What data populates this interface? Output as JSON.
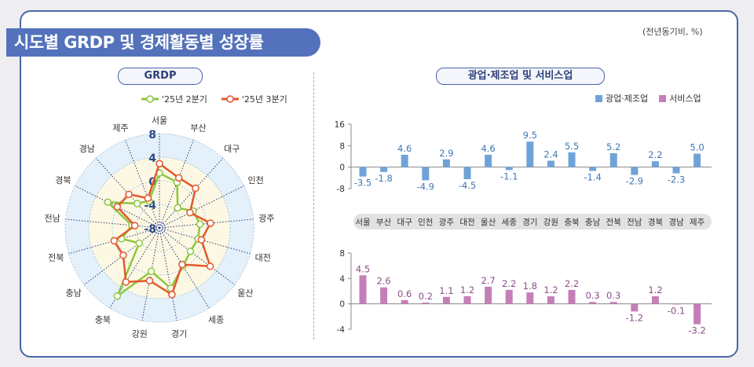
{
  "title": "시도별 GRDP 및 경제활동별 성장률",
  "unit_note": "(전년동기비, %)",
  "colors": {
    "q2": "#8dc63f",
    "q3": "#e2582a",
    "mining": "#6fa3d8",
    "service": "#c47fb8",
    "frame": "#4a66a8"
  },
  "chart_data": [
    {
      "type": "radar",
      "title": "GRDP",
      "categories": [
        "서울",
        "부산",
        "대구",
        "인천",
        "광주",
        "대전",
        "울산",
        "세종",
        "경기",
        "강원",
        "충북",
        "충남",
        "전북",
        "전남",
        "경북",
        "경남",
        "제주"
      ],
      "rlim": [
        -8,
        8
      ],
      "ticks": [
        8,
        4,
        0,
        -4,
        -8
      ],
      "tick_labels": [
        "8",
        "4",
        "0",
        "-4",
        "-8"
      ],
      "series": [
        {
          "name": "'25년 2분기",
          "values": [
            1.3,
            0.3,
            -3.4,
            -1.6,
            -1.1,
            -1.2,
            -1.4,
            -0.4,
            2.4,
            -0.5,
            5.6,
            -3.7,
            -1.3,
            -3.3,
            1.8,
            -2.4,
            -3.1
          ]
        },
        {
          "name": "'25년 3분기",
          "values": [
            2.9,
            1.1,
            1.1,
            -2.2,
            0.7,
            -0.6,
            2.8,
            -0.7,
            3.5,
            1.1,
            2.8,
            -0.3,
            0.0,
            -3.8,
            0.0,
            -0.3,
            -2.6
          ]
        }
      ]
    },
    {
      "type": "bar",
      "title": "광업·제조업 및 서비스업",
      "categories": [
        "서울",
        "부산",
        "대구",
        "인천",
        "광주",
        "대전",
        "울산",
        "세종",
        "경기",
        "강원",
        "충북",
        "충남",
        "전북",
        "전남",
        "경북",
        "경남",
        "제주"
      ],
      "series": [
        {
          "name": "광업·제조업",
          "values": [
            -3.5,
            -1.8,
            4.6,
            -4.9,
            2.9,
            -4.5,
            4.6,
            -1.1,
            9.5,
            2.4,
            5.5,
            -1.4,
            5.2,
            -2.9,
            2.2,
            -2.3,
            5.0
          ],
          "labels": [
            "-3.5",
            "-1.8",
            "4.6",
            "-4.9",
            "2.9",
            "-4.5",
            "4.6",
            "-1.1",
            "9.5",
            "2.4",
            "5.5",
            "-1.4",
            "5.2",
            "-2.9",
            "2.2",
            "-2.3",
            "5.0"
          ],
          "ylim": [
            -8,
            16
          ],
          "ticks": [
            "16",
            "8",
            "0",
            "-8"
          ]
        },
        {
          "name": "서비스업",
          "values": [
            4.5,
            2.6,
            0.6,
            0.2,
            1.1,
            1.2,
            2.7,
            2.2,
            1.8,
            1.2,
            2.2,
            0.3,
            0.3,
            -1.2,
            1.2,
            -0.1,
            -3.2
          ],
          "labels": [
            "4.5",
            "2.6",
            "0.6",
            "0.2",
            "1.1",
            "1.2",
            "2.7",
            "2.2",
            "1.8",
            "1.2",
            "2.2",
            "0.3",
            "0.3",
            "-1.2",
            "1.2",
            "-0.1",
            "-3.2"
          ],
          "ylim": [
            -4,
            8
          ],
          "ticks": [
            "8",
            "4",
            "0",
            "-4"
          ]
        }
      ],
      "legend": "top-right"
    }
  ]
}
